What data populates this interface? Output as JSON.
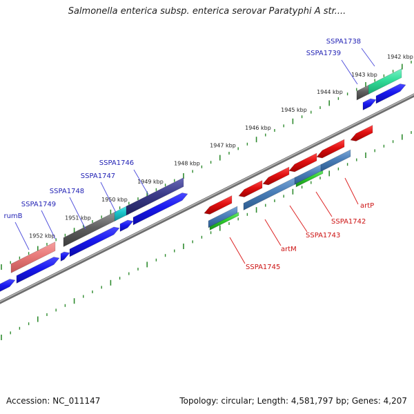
{
  "title": "Salmonella enterica subsp. enterica serovar Paratyphi A str....",
  "footer": {
    "accession": "Accession: NC_011147",
    "topology": "Topology: circular; Length: 4,581,797 bp; Genes: 4,207"
  },
  "colors": {
    "background": "#ffffff",
    "backbone": "#8c8c8c",
    "ticks": "#2e8b2e",
    "forward_cds": "#1515ee",
    "reverse_cds": "#dd1111",
    "labels_forward": "#1f1fb4",
    "labels_reverse": "#cc1111",
    "leader": "#5555dd",
    "leader_reverse": "#dd2222"
  },
  "map_data": {
    "scale_labels": [
      "1942 kbp",
      "1943 kbp",
      "1944 kbp",
      "1945 kbp",
      "1946 kbp",
      "1947 kbp",
      "1948 kbp",
      "1949 kbp",
      "1950 kbp",
      "1951 kbp",
      "1952 kbp"
    ],
    "gene_labels_forward": [
      "SSPA1738",
      "SSPA1739",
      "SSPA1746",
      "SSPA1747",
      "SSPA1748",
      "SSPA1749",
      "rumB"
    ],
    "gene_labels_reverse": [
      "artP",
      "SSPA1742",
      "SSPA1743",
      "artM",
      "SSPA1745"
    ]
  }
}
